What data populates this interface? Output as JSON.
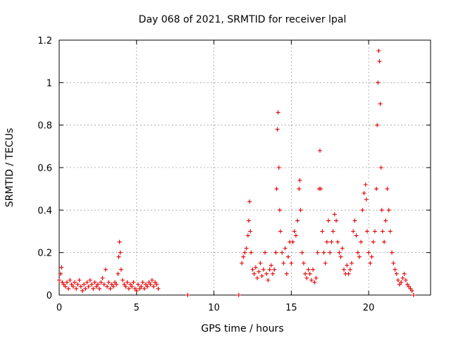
{
  "chart_data": {
    "type": "scatter",
    "title": "Day 068 of 2021, SRMTID for receiver lpal",
    "xlabel": "GPS time / hours",
    "ylabel": "SRMTID / TECUs",
    "xlim": [
      0,
      24
    ],
    "ylim": [
      0,
      1.2
    ],
    "xticks": [
      0,
      5,
      10,
      15,
      20
    ],
    "yticks": [
      0,
      0.2,
      0.4,
      0.6,
      0.8,
      1,
      1.2
    ],
    "xtick_labels": [
      "0",
      "5",
      "10",
      "15",
      "20"
    ],
    "ytick_labels": [
      "0",
      "0.2",
      "0.4",
      "0.6",
      "0.8",
      "1",
      "1.2"
    ],
    "grid": true,
    "marker": "+",
    "color": "#e00000",
    "series": [
      {
        "name": "SRMTID",
        "points": [
          [
            0.0,
            0.07
          ],
          [
            0.1,
            0.1
          ],
          [
            0.15,
            0.13
          ],
          [
            0.2,
            0.06
          ],
          [
            0.3,
            0.05
          ],
          [
            0.4,
            0.04
          ],
          [
            0.5,
            0.06
          ],
          [
            0.6,
            0.03
          ],
          [
            0.7,
            0.07
          ],
          [
            0.8,
            0.05
          ],
          [
            0.9,
            0.04
          ],
          [
            1.0,
            0.06
          ],
          [
            1.1,
            0.03
          ],
          [
            1.2,
            0.05
          ],
          [
            1.3,
            0.07
          ],
          [
            1.4,
            0.04
          ],
          [
            1.5,
            0.02
          ],
          [
            1.6,
            0.05
          ],
          [
            1.7,
            0.03
          ],
          [
            1.8,
            0.06
          ],
          [
            1.9,
            0.04
          ],
          [
            2.0,
            0.07
          ],
          [
            2.1,
            0.05
          ],
          [
            2.2,
            0.03
          ],
          [
            2.3,
            0.06
          ],
          [
            2.4,
            0.04
          ],
          [
            2.5,
            0.05
          ],
          [
            2.6,
            0.03
          ],
          [
            2.7,
            0.06
          ],
          [
            2.8,
            0.08
          ],
          [
            2.9,
            0.05
          ],
          [
            3.0,
            0.12
          ],
          [
            3.1,
            0.04
          ],
          [
            3.2,
            0.06
          ],
          [
            3.3,
            0.03
          ],
          [
            3.4,
            0.05
          ],
          [
            3.5,
            0.04
          ],
          [
            3.6,
            0.06
          ],
          [
            3.7,
            0.05
          ],
          [
            3.8,
            0.1
          ],
          [
            3.85,
            0.18
          ],
          [
            3.9,
            0.25
          ],
          [
            3.95,
            0.2
          ],
          [
            4.0,
            0.12
          ],
          [
            4.1,
            0.07
          ],
          [
            4.2,
            0.05
          ],
          [
            4.3,
            0.04
          ],
          [
            4.4,
            0.06
          ],
          [
            4.5,
            0.03
          ],
          [
            4.6,
            0.05
          ],
          [
            4.7,
            0.04
          ],
          [
            4.8,
            0.06
          ],
          [
            4.9,
            0.03
          ],
          [
            5.0,
            0.02
          ],
          [
            5.1,
            0.05
          ],
          [
            5.2,
            0.03
          ],
          [
            5.3,
            0.04
          ],
          [
            5.4,
            0.06
          ],
          [
            5.5,
            0.03
          ],
          [
            5.6,
            0.05
          ],
          [
            5.7,
            0.04
          ],
          [
            5.8,
            0.06
          ],
          [
            5.9,
            0.05
          ],
          [
            6.0,
            0.07
          ],
          [
            6.1,
            0.04
          ],
          [
            6.2,
            0.06
          ],
          [
            6.3,
            0.05
          ],
          [
            6.4,
            0.03
          ],
          [
            8.3,
            0.0
          ],
          [
            11.6,
            0.0
          ],
          [
            11.8,
            0.15
          ],
          [
            11.9,
            0.18
          ],
          [
            12.0,
            0.2
          ],
          [
            12.1,
            0.22
          ],
          [
            12.2,
            0.28
          ],
          [
            12.25,
            0.35
          ],
          [
            12.3,
            0.44
          ],
          [
            12.35,
            0.3
          ],
          [
            12.4,
            0.2
          ],
          [
            12.5,
            0.12
          ],
          [
            12.6,
            0.1
          ],
          [
            12.7,
            0.13
          ],
          [
            12.8,
            0.08
          ],
          [
            12.9,
            0.11
          ],
          [
            13.0,
            0.15
          ],
          [
            13.1,
            0.09
          ],
          [
            13.2,
            0.12
          ],
          [
            13.3,
            0.2
          ],
          [
            13.4,
            0.1
          ],
          [
            13.5,
            0.07
          ],
          [
            13.6,
            0.12
          ],
          [
            13.7,
            0.14
          ],
          [
            13.8,
            0.1
          ],
          [
            13.9,
            0.12
          ],
          [
            14.0,
            0.2
          ],
          [
            14.05,
            0.5
          ],
          [
            14.1,
            0.78
          ],
          [
            14.15,
            0.86
          ],
          [
            14.2,
            0.6
          ],
          [
            14.25,
            0.4
          ],
          [
            14.3,
            0.3
          ],
          [
            14.4,
            0.2
          ],
          [
            14.5,
            0.15
          ],
          [
            14.6,
            0.22
          ],
          [
            14.7,
            0.1
          ],
          [
            14.8,
            0.18
          ],
          [
            14.9,
            0.25
          ],
          [
            15.0,
            0.15
          ],
          [
            15.1,
            0.25
          ],
          [
            15.2,
            0.3
          ],
          [
            15.3,
            0.28
          ],
          [
            15.4,
            0.35
          ],
          [
            15.5,
            0.5
          ],
          [
            15.55,
            0.54
          ],
          [
            15.6,
            0.4
          ],
          [
            15.7,
            0.2
          ],
          [
            15.8,
            0.15
          ],
          [
            15.9,
            0.1
          ],
          [
            16.0,
            0.08
          ],
          [
            16.1,
            0.12
          ],
          [
            16.2,
            0.1
          ],
          [
            16.3,
            0.07
          ],
          [
            16.4,
            0.12
          ],
          [
            16.5,
            0.06
          ],
          [
            16.6,
            0.08
          ],
          [
            16.7,
            0.2
          ],
          [
            16.8,
            0.5
          ],
          [
            16.85,
            0.68
          ],
          [
            16.9,
            0.5
          ],
          [
            17.0,
            0.3
          ],
          [
            17.1,
            0.2
          ],
          [
            17.2,
            0.15
          ],
          [
            17.3,
            0.25
          ],
          [
            17.4,
            0.35
          ],
          [
            17.5,
            0.2
          ],
          [
            17.6,
            0.25
          ],
          [
            17.7,
            0.3
          ],
          [
            17.8,
            0.38
          ],
          [
            17.9,
            0.35
          ],
          [
            18.0,
            0.25
          ],
          [
            18.1,
            0.2
          ],
          [
            18.2,
            0.18
          ],
          [
            18.3,
            0.22
          ],
          [
            18.4,
            0.12
          ],
          [
            18.5,
            0.1
          ],
          [
            18.6,
            0.14
          ],
          [
            18.7,
            0.1
          ],
          [
            18.8,
            0.12
          ],
          [
            18.9,
            0.15
          ],
          [
            19.0,
            0.3
          ],
          [
            19.1,
            0.35
          ],
          [
            19.2,
            0.28
          ],
          [
            19.3,
            0.2
          ],
          [
            19.4,
            0.18
          ],
          [
            19.5,
            0.25
          ],
          [
            19.6,
            0.4
          ],
          [
            19.7,
            0.48
          ],
          [
            19.8,
            0.52
          ],
          [
            19.85,
            0.45
          ],
          [
            19.9,
            0.3
          ],
          [
            20.0,
            0.2
          ],
          [
            20.1,
            0.15
          ],
          [
            20.2,
            0.18
          ],
          [
            20.3,
            0.25
          ],
          [
            20.4,
            0.3
          ],
          [
            20.5,
            0.5
          ],
          [
            20.55,
            0.8
          ],
          [
            20.6,
            1.0
          ],
          [
            20.65,
            1.15
          ],
          [
            20.7,
            1.1
          ],
          [
            20.75,
            0.9
          ],
          [
            20.8,
            0.6
          ],
          [
            20.85,
            0.4
          ],
          [
            20.9,
            0.3
          ],
          [
            21.0,
            0.25
          ],
          [
            21.1,
            0.35
          ],
          [
            21.2,
            0.5
          ],
          [
            21.3,
            0.4
          ],
          [
            21.4,
            0.3
          ],
          [
            21.5,
            0.2
          ],
          [
            21.6,
            0.15
          ],
          [
            21.7,
            0.12
          ],
          [
            21.8,
            0.1
          ],
          [
            21.9,
            0.07
          ],
          [
            22.0,
            0.05
          ],
          [
            22.1,
            0.06
          ],
          [
            22.2,
            0.08
          ],
          [
            22.3,
            0.1
          ],
          [
            22.4,
            0.07
          ],
          [
            22.5,
            0.05
          ],
          [
            22.6,
            0.04
          ],
          [
            22.7,
            0.03
          ],
          [
            22.8,
            0.02
          ],
          [
            22.9,
            0.0
          ]
        ]
      }
    ]
  }
}
